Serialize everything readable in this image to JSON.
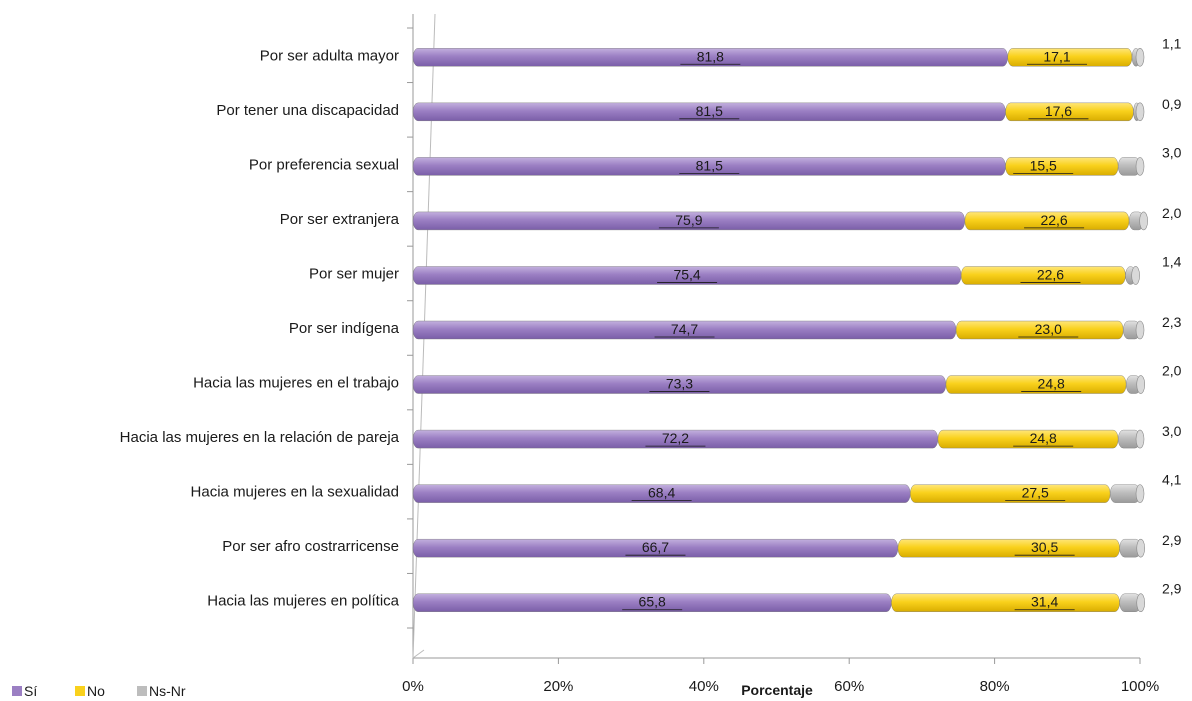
{
  "chart_data": {
    "type": "bar",
    "orientation": "horizontal",
    "stacked": true,
    "percent": true,
    "xlabel": "Porcentaje",
    "ylabel": "",
    "xlim": [
      0,
      100
    ],
    "xticks": [
      "0%",
      "20%",
      "40%",
      "60%",
      "80%",
      "100%"
    ],
    "legend_position": "bottom-left",
    "grid": false,
    "categories": [
      "Por ser adulta mayor",
      "Por tener una discapacidad",
      "Por preferencia sexual",
      "Por ser extranjera",
      "Por ser mujer",
      "Por ser indígena",
      "Hacia las mujeres en el trabajo",
      "Hacia las mujeres en la relación de pareja",
      "Hacia mujeres en la sexualidad",
      "Por ser afro costrarricense",
      "Hacia las mujeres en política"
    ],
    "series": [
      {
        "name": "Sí",
        "color": "#9b7fc3",
        "values": [
          81.8,
          81.5,
          81.5,
          75.9,
          75.4,
          74.7,
          73.3,
          72.2,
          68.4,
          66.7,
          65.8
        ],
        "labels": [
          "81,8",
          "81,5",
          "81,5",
          "75,9",
          "75,4",
          "74,7",
          "73,3",
          "72,2",
          "68,4",
          "66,7",
          "65,8"
        ]
      },
      {
        "name": "No",
        "color": "#f9d11c",
        "values": [
          17.1,
          17.6,
          15.5,
          22.6,
          22.6,
          23.0,
          24.8,
          24.8,
          27.5,
          30.5,
          31.4
        ],
        "labels": [
          "17,1",
          "17,6",
          "15,5",
          "22,6",
          "22,6",
          "23,0",
          "24,8",
          "24,8",
          "27,5",
          "30,5",
          "31,4"
        ]
      },
      {
        "name": "Ns-Nr",
        "color": "#bdbdbd",
        "values": [
          1.1,
          0.9,
          3.0,
          2.0,
          1.4,
          2.3,
          2.0,
          3.0,
          4.1,
          2.9,
          2.9
        ],
        "labels": [
          "1,1",
          "0,9",
          "3,0",
          "2,0",
          "1,4",
          "2,3",
          "2,0",
          "3,0",
          "4,1",
          "2,9",
          "2,9"
        ]
      }
    ]
  }
}
